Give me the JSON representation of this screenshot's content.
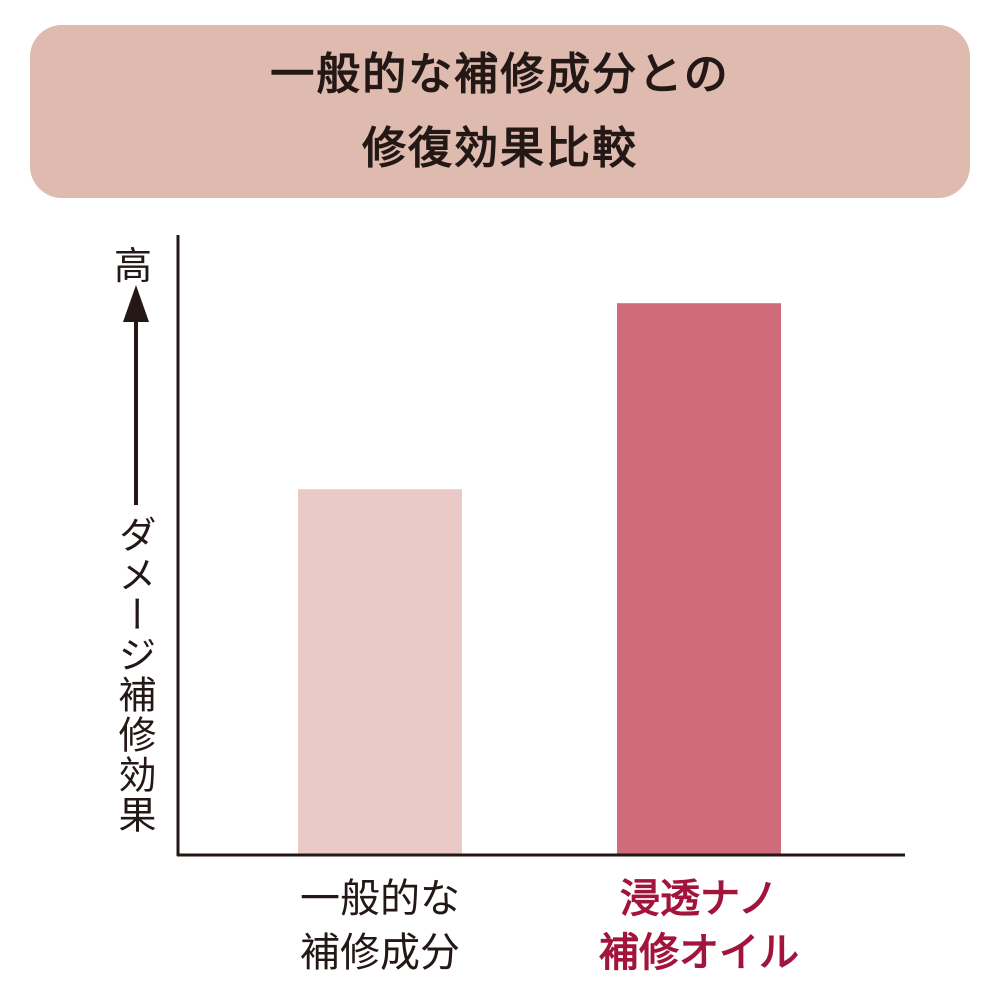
{
  "chart_data": {
    "type": "bar",
    "title": [
      "一般的な補修成分との",
      "修復効果比較"
    ],
    "ylabel_top": "高",
    "ylabel": "ダメージ補修効果",
    "categories": [
      [
        "一般的な",
        "補修成分"
      ],
      [
        "浸透ナノ",
        "補修オイル"
      ]
    ],
    "values": [
      59,
      89
    ],
    "ylim": [
      0,
      100
    ],
    "grid": false,
    "colors": {
      "title_bg": "#dfbaae",
      "bars": [
        "#ebc9c7",
        "#d06b79"
      ],
      "labels": [
        "#231815",
        "#a3143c"
      ],
      "axis": "#231815"
    }
  }
}
